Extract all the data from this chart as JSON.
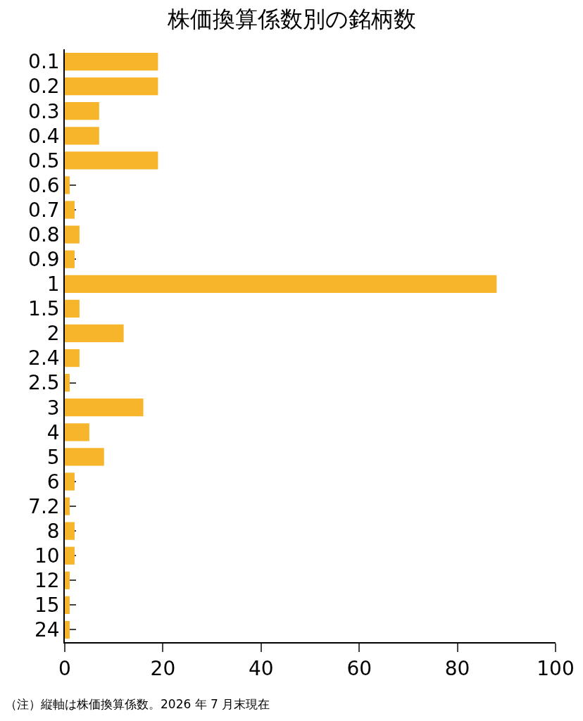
{
  "chart_data": {
    "type": "bar",
    "orientation": "horizontal",
    "title": "株価換算係数別の銘柄数",
    "categories": [
      "0.1",
      "0.2",
      "0.3",
      "0.4",
      "0.5",
      "0.6",
      "0.7",
      "0.8",
      "0.9",
      "1",
      "1.5",
      "2",
      "2.4",
      "2.5",
      "3",
      "4",
      "5",
      "6",
      "7.2",
      "8",
      "10",
      "12",
      "15",
      "24"
    ],
    "values": [
      19,
      19,
      7,
      7,
      19,
      1,
      2,
      3,
      2,
      88,
      3,
      12,
      3,
      1,
      16,
      5,
      8,
      2,
      1,
      2,
      2,
      1,
      1,
      1
    ],
    "color": "#f7b52c",
    "xlim": [
      0,
      100
    ],
    "xticks": [
      0,
      20,
      40,
      60,
      80,
      100
    ],
    "annotations": [
      "（注）縦軸は株価換算係数。2026 年 7 月末現在"
    ]
  }
}
